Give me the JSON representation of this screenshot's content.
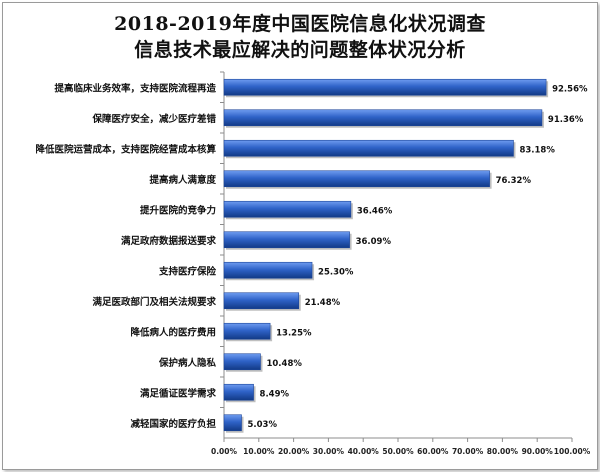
{
  "chart_data": {
    "type": "bar",
    "orientation": "horizontal",
    "title_lines": [
      "2018-2019年度中国医院信息化状况调查",
      "信息技术最应解决的问题整体状况分析"
    ],
    "categories": [
      "提高临床业务效率，支持医院流程再造",
      "保障医疗安全，减少医疗差错",
      "降低医院运营成本，支持医院经营成本核算",
      "提高病人满意度",
      "提升医院的竞争力",
      "满足政府数据报送要求",
      "支持医疗保险",
      "满足医政部门及相关法规要求",
      "降低病人的医疗费用",
      "保护病人隐私",
      "满足循证医学需求",
      "减轻国家的医疗负担"
    ],
    "values": [
      92.56,
      91.36,
      83.18,
      76.32,
      36.46,
      36.09,
      25.3,
      21.48,
      13.25,
      10.48,
      8.49,
      5.03
    ],
    "value_labels": [
      "92.56%",
      "91.36%",
      "83.18%",
      "76.32%",
      "36.46%",
      "36.09%",
      "25.30%",
      "21.48%",
      "13.25%",
      "10.48%",
      "8.49%",
      "5.03%"
    ],
    "xlim": [
      0,
      100
    ],
    "x_ticks": [
      "0.00%",
      "10.00%",
      "20.00%",
      "30.00%",
      "40.00%",
      "50.00%",
      "60.00%",
      "70.00%",
      "80.00%",
      "90.00%",
      "100.00%"
    ],
    "grid": false,
    "bar_color": "#2f63c8",
    "bar_dark_color": "#123a86",
    "bar_light_color": "#6f9cf0"
  }
}
